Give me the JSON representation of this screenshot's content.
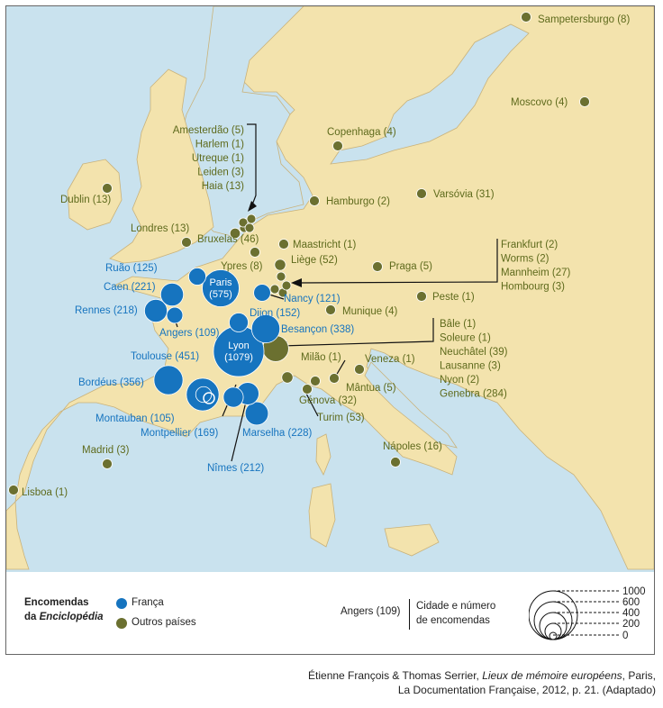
{
  "legend": {
    "title_line1": "Encomendas",
    "title_line2_prefix": "da ",
    "title_line2_italic": "Enciclopédia",
    "france_label": "França",
    "others_label": "Outros países",
    "example_city": "Angers (109)",
    "example_desc_line1": "Cidade e número",
    "example_desc_line2": "de encomendas",
    "scale_values": [
      "1000",
      "600",
      "400",
      "200",
      "0"
    ],
    "colors": {
      "france": "#1674bf",
      "others": "#6b7030"
    }
  },
  "credit": {
    "line1_prefix": "Étienne François & Thomas Serrier, ",
    "line1_italic": "Lieux de mémoire européens",
    "line1_suffix": ", Paris,",
    "line2": "La Documentation Française, 2012, p. 21. (Adaptado)"
  },
  "cities_france": [
    {
      "name": "Paris",
      "orders": 575
    },
    {
      "name": "Lyon",
      "orders": 1079
    },
    {
      "name": "Ruão",
      "orders": 125
    },
    {
      "name": "Caen",
      "orders": 221
    },
    {
      "name": "Rennes",
      "orders": 218
    },
    {
      "name": "Angers",
      "orders": 109
    },
    {
      "name": "Nancy",
      "orders": 121
    },
    {
      "name": "Dijon",
      "orders": 152
    },
    {
      "name": "Besançon",
      "orders": 338
    },
    {
      "name": "Toulouse",
      "orders": 451
    },
    {
      "name": "Bordéus",
      "orders": 356
    },
    {
      "name": "Montauban",
      "orders": 105
    },
    {
      "name": "Montpellier",
      "orders": 169
    },
    {
      "name": "Marselha",
      "orders": 228
    },
    {
      "name": "Nîmes",
      "orders": 212
    }
  ],
  "cities_others": [
    {
      "name": "Sampetersburgo",
      "orders": 8
    },
    {
      "name": "Moscovo",
      "orders": 4
    },
    {
      "name": "Copenhaga",
      "orders": 4
    },
    {
      "name": "Dublin",
      "orders": 13
    },
    {
      "name": "Hamburgo",
      "orders": 2
    },
    {
      "name": "Varsóvia",
      "orders": 31
    },
    {
      "name": "Londres",
      "orders": 13
    },
    {
      "name": "Bruxelas",
      "orders": 46
    },
    {
      "name": "Maastricht",
      "orders": 1
    },
    {
      "name": "Liège",
      "orders": 52
    },
    {
      "name": "Ypres",
      "orders": 8
    },
    {
      "name": "Praga",
      "orders": 5
    },
    {
      "name": "Peste",
      "orders": 1
    },
    {
      "name": "Munique",
      "orders": 4
    },
    {
      "name": "Milão",
      "orders": 1
    },
    {
      "name": "Veneza",
      "orders": 1
    },
    {
      "name": "Mântua",
      "orders": 5
    },
    {
      "name": "Génova",
      "orders": 32
    },
    {
      "name": "Turim",
      "orders": 53
    },
    {
      "name": "Nápoles",
      "orders": 16
    },
    {
      "name": "Madrid",
      "orders": 3
    },
    {
      "name": "Lisboa",
      "orders": 1
    }
  ],
  "groups": {
    "netherlands": [
      {
        "name": "Amesterdão",
        "orders": 5
      },
      {
        "name": "Harlem",
        "orders": 1
      },
      {
        "name": "Utreque",
        "orders": 1
      },
      {
        "name": "Leiden",
        "orders": 3
      },
      {
        "name": "Haia",
        "orders": 13
      }
    ],
    "rhine": [
      {
        "name": "Frankfurt",
        "orders": 2
      },
      {
        "name": "Worms",
        "orders": 2
      },
      {
        "name": "Mannheim",
        "orders": 27
      },
      {
        "name": "Hombourg",
        "orders": 3
      }
    ],
    "swiss": [
      {
        "name": "Bâle",
        "orders": 1
      },
      {
        "name": "Soleure",
        "orders": 1
      },
      {
        "name": "Neuchâtel",
        "orders": 39
      },
      {
        "name": "Lausanne",
        "orders": 3
      },
      {
        "name": "Nyon",
        "orders": 2
      },
      {
        "name": "Genebra",
        "orders": 284
      }
    ]
  }
}
